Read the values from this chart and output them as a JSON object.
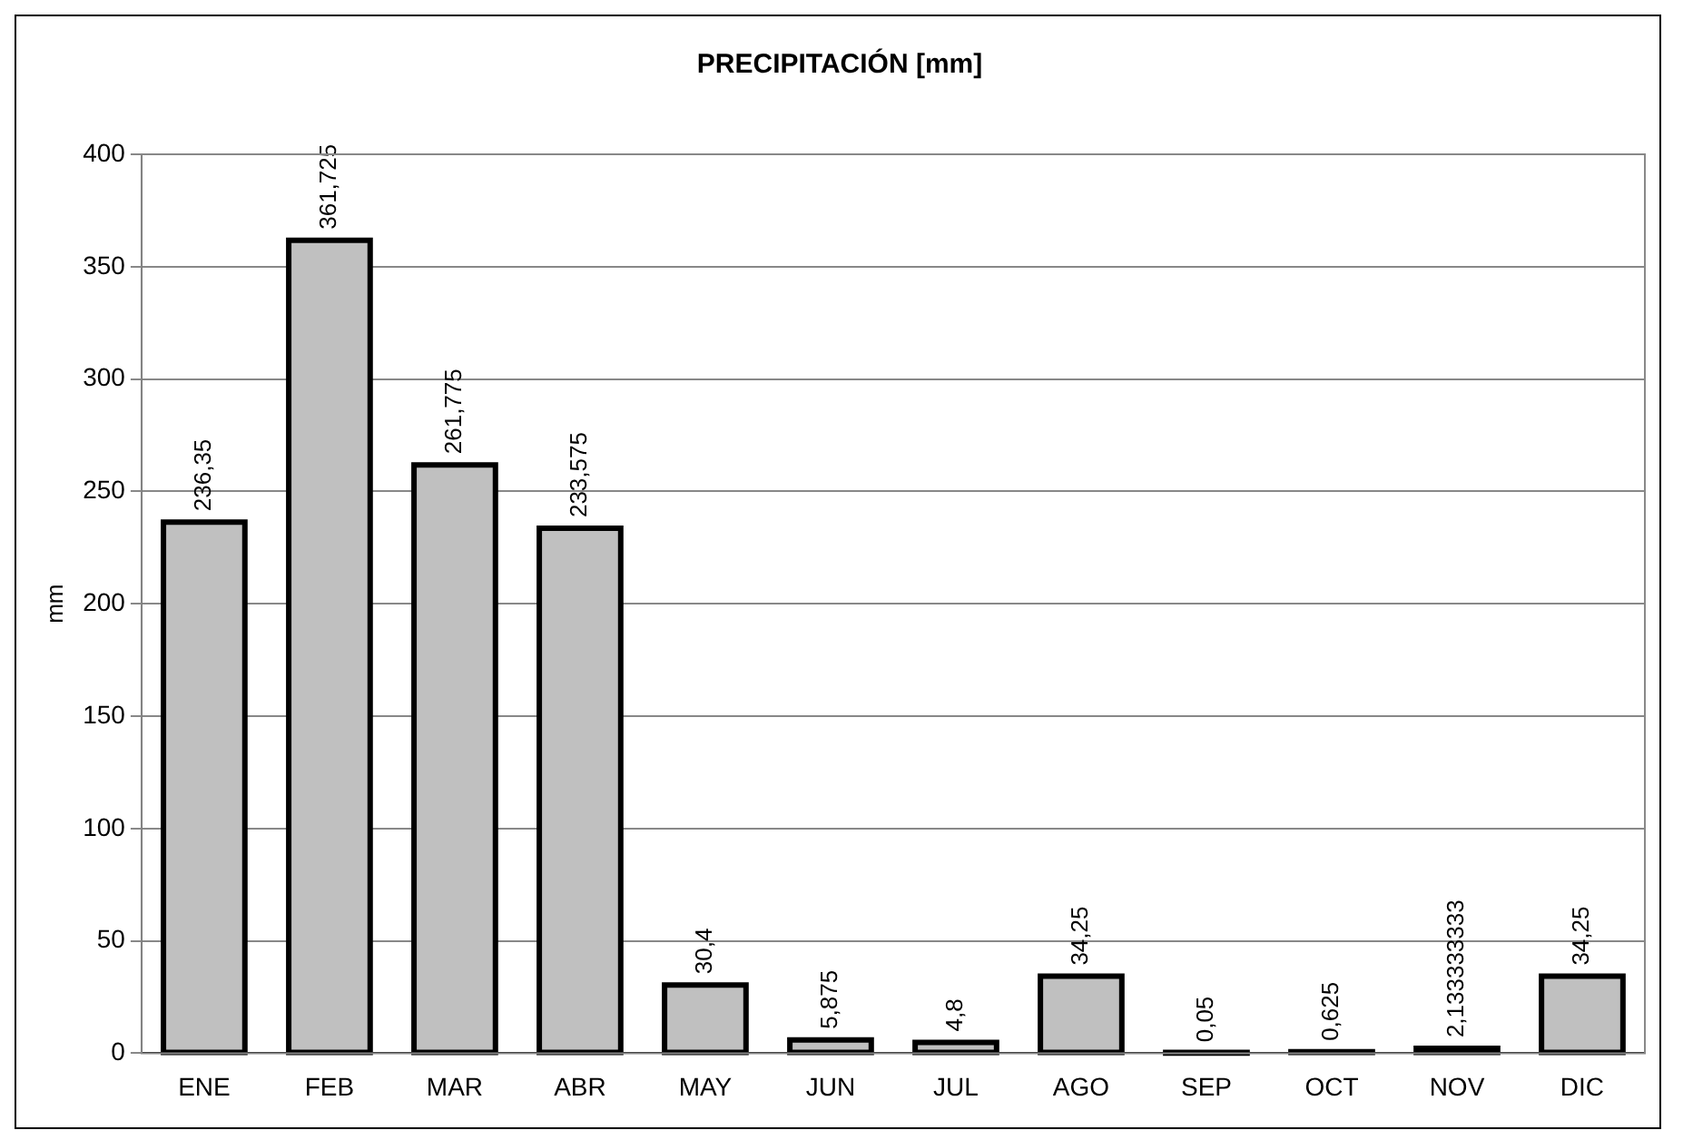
{
  "chart_data": {
    "type": "bar",
    "title": "PRECIPITACIÓN [mm]",
    "ylabel": "mm",
    "categories": [
      "ENE",
      "FEB",
      "MAR",
      "ABR",
      "MAY",
      "JUN",
      "JUL",
      "AGO",
      "SEP",
      "OCT",
      "NOV",
      "DIC"
    ],
    "values": [
      236.35,
      361.725,
      261.775,
      233.575,
      30.4,
      5.875,
      4.8,
      34.25,
      0.05,
      0.625,
      2.133333333,
      34.25
    ],
    "value_labels": [
      "236,35",
      "361,725",
      "261,775",
      "233,575",
      "30,4",
      "5,875",
      "4,8",
      "34,25",
      "0,05",
      "0,625",
      "2,133333333",
      "34,25"
    ],
    "color": "#c0c0c0",
    "ylim": [
      0,
      400
    ],
    "yticks": [
      0,
      50,
      100,
      150,
      200,
      250,
      300,
      350,
      400
    ],
    "grid": "y",
    "legend": false
  }
}
